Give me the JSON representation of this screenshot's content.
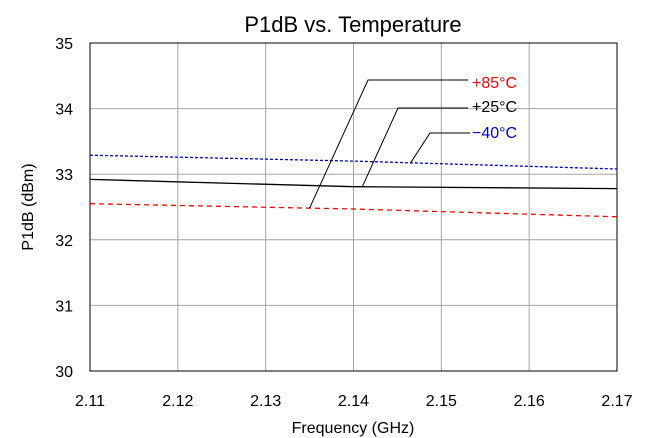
{
  "chart_data": {
    "type": "line",
    "title": "P1dB vs. Temperature",
    "xlabel": "Frequency (GHz)",
    "ylabel": "P1dB (dBm)",
    "xlim": [
      2.11,
      2.17
    ],
    "ylim": [
      30,
      35
    ],
    "grid": true,
    "x_ticks": [
      "2.11",
      "2.12",
      "2.13",
      "2.14",
      "2.15",
      "2.16",
      "2.17"
    ],
    "y_ticks": [
      "30",
      "31",
      "32",
      "33",
      "34",
      "35"
    ],
    "series": [
      {
        "name": "+85°C",
        "color": "#ff0000",
        "dash": "dashed",
        "x": [
          2.11,
          2.14,
          2.17
        ],
        "y": [
          32.55,
          32.47,
          32.35
        ]
      },
      {
        "name": "+25°C",
        "color": "#000000",
        "dash": "solid",
        "x": [
          2.11,
          2.14,
          2.17
        ],
        "y": [
          32.92,
          32.81,
          32.78
        ]
      },
      {
        "name": "−40°C",
        "color": "#0000cc",
        "dash": "dotted",
        "x": [
          2.11,
          2.14,
          2.17
        ],
        "y": [
          33.29,
          33.2,
          33.08
        ]
      }
    ]
  }
}
